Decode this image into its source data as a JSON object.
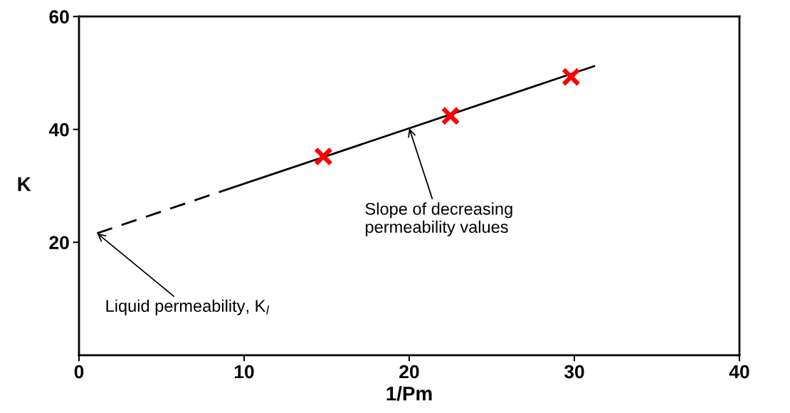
{
  "chart_data": {
    "type": "line",
    "xlabel": "1/Pm",
    "ylabel": "K",
    "xlim": [
      0,
      40
    ],
    "xticks": [
      0,
      10,
      20,
      30,
      40
    ],
    "ylim": [
      0,
      60
    ],
    "yticks": [
      20,
      40,
      60
    ],
    "grid": false,
    "legend": false,
    "series": [
      {
        "x": [
          1.1,
          9
        ],
        "values": [
          21.6,
          29.4
        ],
        "color": "#000000",
        "line_style": "dashed",
        "marker": "none"
      },
      {
        "x": [
          9,
          31.2
        ],
        "values": [
          29.4,
          51.2
        ],
        "color": "#000000",
        "line_style": "solid",
        "marker": "none"
      },
      {
        "type": "scatter",
        "x": [
          14.8,
          22.5,
          29.8
        ],
        "values": [
          35.2,
          42.4,
          49.3
        ],
        "color": "#ff0000",
        "marker": "cross"
      }
    ],
    "annotations": [
      {
        "text": "Slope of decreasing\npermeability values",
        "x": 20,
        "y": 40.2
      },
      {
        "text": "Liquid permeability, K$_{l}$",
        "x": 1.1,
        "y": 21.6
      }
    ]
  }
}
